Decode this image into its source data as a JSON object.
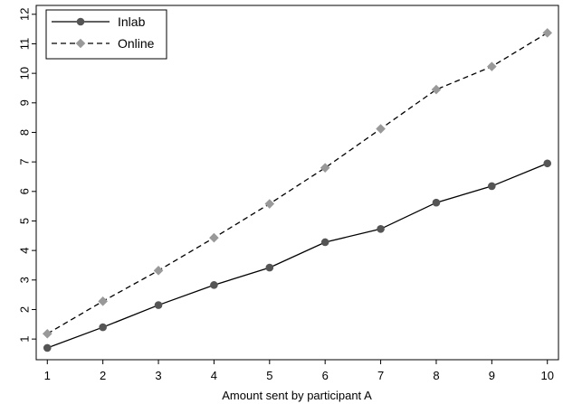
{
  "chart_data": {
    "type": "line",
    "title": "",
    "xlabel": "Amount sent by participant A",
    "ylabel": "",
    "x": [
      1,
      2,
      3,
      4,
      5,
      6,
      7,
      8,
      9,
      10
    ],
    "xlim": [
      0.8,
      10.2
    ],
    "ylim": [
      0.3,
      12.3
    ],
    "yticks": [
      1,
      2,
      3,
      4,
      5,
      6,
      7,
      8,
      9,
      10,
      11,
      12
    ],
    "grid": false,
    "legend_position": "top-left",
    "series": [
      {
        "name": "Inlab",
        "values": [
          0.7,
          1.4,
          2.15,
          2.83,
          3.42,
          4.28,
          4.73,
          5.62,
          6.18,
          6.95
        ],
        "color": "#555555",
        "line_style": "solid",
        "marker": "circle"
      },
      {
        "name": "Online",
        "values": [
          1.18,
          2.28,
          3.32,
          4.43,
          5.58,
          6.8,
          8.12,
          9.45,
          10.23,
          11.37
        ],
        "color": "#999999",
        "line_style": "dashed",
        "marker": "diamond"
      }
    ]
  }
}
